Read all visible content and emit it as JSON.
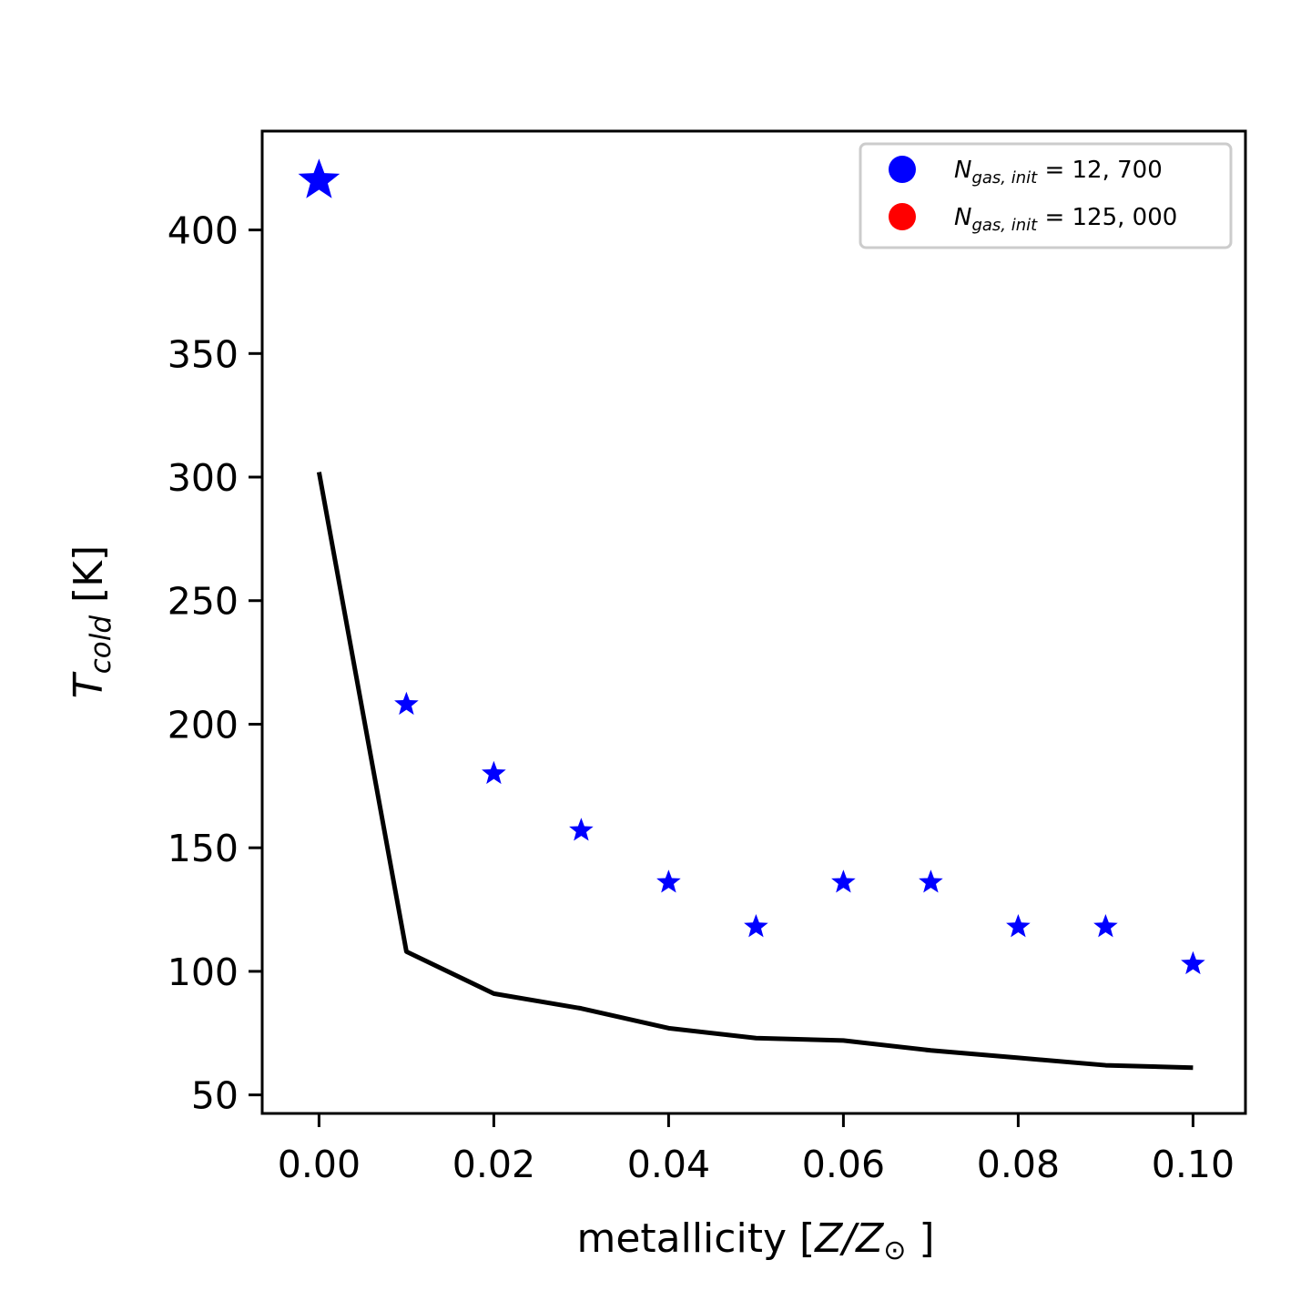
{
  "chart_data": {
    "type": "scatter",
    "xlabel": {
      "prefix": "metallicity [",
      "math": "Z/Z",
      "sub": "⊙",
      "suffix": " ]"
    },
    "ylabel": {
      "prefix": "T",
      "sub": "cold",
      "suffix": " [K]"
    },
    "xlim": [
      -0.0065,
      0.106
    ],
    "ylim": [
      42.5,
      440
    ],
    "xticks": [
      0.0,
      0.02,
      0.04,
      0.06,
      0.08,
      0.1
    ],
    "xtick_labels": [
      "0.00",
      "0.02",
      "0.04",
      "0.06",
      "0.08",
      "0.10"
    ],
    "yticks": [
      50,
      100,
      150,
      200,
      250,
      300,
      350,
      400
    ],
    "ytick_labels": [
      "50",
      "100",
      "150",
      "200",
      "250",
      "300",
      "350",
      "400"
    ],
    "grid": false,
    "legend_position": "top-right",
    "legend": [
      {
        "label_var": "N",
        "label_sub": "gas, init",
        "label_value": " = 12, 700",
        "color": "#0000ff"
      },
      {
        "label_var": "N",
        "label_sub": "gas, init",
        "label_value": " = 125, 000",
        "color": "#ff0000"
      }
    ],
    "series": [
      {
        "kind": "scatter",
        "marker": "star",
        "color": "#0000ff",
        "x": [
          0.0,
          0.01,
          0.02,
          0.03,
          0.04,
          0.05,
          0.06,
          0.07,
          0.08,
          0.09,
          0.1
        ],
        "y": [
          420,
          208,
          180,
          157,
          136,
          118,
          136,
          136,
          118,
          118,
          103
        ],
        "large_first": true
      },
      {
        "kind": "line",
        "color": "#000000",
        "x": [
          0.0,
          0.01,
          0.02,
          0.03,
          0.04,
          0.05,
          0.06,
          0.07,
          0.08,
          0.09,
          0.1
        ],
        "y": [
          302,
          108,
          91,
          85,
          77,
          73,
          72,
          68,
          65,
          62,
          61
        ]
      }
    ]
  }
}
